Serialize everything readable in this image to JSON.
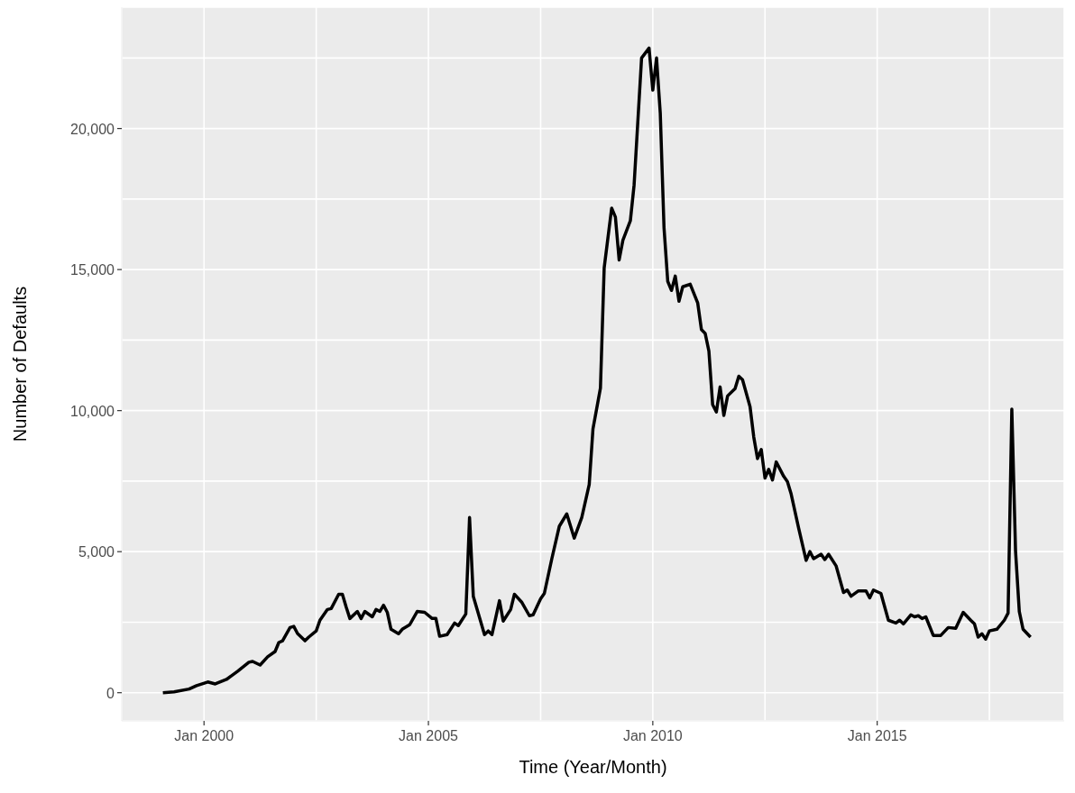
{
  "chart_data": {
    "type": "line",
    "xlabel": "Time (Year/Month)",
    "ylabel": "Number of Defaults",
    "xlim": [
      "1998-03",
      "2019-03"
    ],
    "ylim": [
      -1000,
      24300
    ],
    "xticks": [
      {
        "value": "2000-01",
        "label": "Jan 2000"
      },
      {
        "value": "2002-07",
        "label": null
      },
      {
        "value": "2005-01",
        "label": "Jan 2005"
      },
      {
        "value": "2007-07",
        "label": null
      },
      {
        "value": "2010-01",
        "label": "Jan 2010"
      },
      {
        "value": "2012-07",
        "label": null
      },
      {
        "value": "2015-01",
        "label": "Jan 2015"
      },
      {
        "value": "2017-07",
        "label": null
      }
    ],
    "yticks": [
      {
        "value": 0,
        "label": "0"
      },
      {
        "value": 2500,
        "label": null
      },
      {
        "value": 5000,
        "label": "5,000"
      },
      {
        "value": 7500,
        "label": null
      },
      {
        "value": 10000,
        "label": "10,000"
      },
      {
        "value": 12500,
        "label": null
      },
      {
        "value": 15000,
        "label": "15,000"
      },
      {
        "value": 17500,
        "label": null
      },
      {
        "value": 20000,
        "label": "20,000"
      },
      {
        "value": 22500,
        "label": null
      }
    ],
    "grid": true,
    "marker": "none",
    "line_style": "solid",
    "x": [
      "1999-02",
      "1999-05",
      "1999-09",
      "1999-11",
      "2000-02",
      "2000-04",
      "2000-07",
      "2000-10",
      "2001-01",
      "2001-02",
      "2001-04",
      "2001-06",
      "2001-08",
      "2001-09",
      "2001-10",
      "2001-12",
      "2002-01",
      "2002-02",
      "2002-04",
      "2002-05",
      "2002-07",
      "2002-08",
      "2002-10",
      "2002-11",
      "2003-01",
      "2003-02",
      "2003-03",
      "2003-04",
      "2003-06",
      "2003-07",
      "2003-08",
      "2003-10",
      "2003-11",
      "2003-12",
      "2004-01",
      "2004-02",
      "2004-03",
      "2004-05",
      "2004-06",
      "2004-08",
      "2004-10",
      "2004-12",
      "2005-02",
      "2005-03",
      "2005-04",
      "2005-06",
      "2005-08",
      "2005-09",
      "2005-11",
      "2005-12",
      "2006-01",
      "2006-04",
      "2006-05",
      "2006-06",
      "2006-08",
      "2006-09",
      "2006-11",
      "2006-12",
      "2007-02",
      "2007-04",
      "2007-05",
      "2007-07",
      "2007-08",
      "2007-10",
      "2007-12",
      "2008-02",
      "2008-04",
      "2008-06",
      "2008-08",
      "2008-09",
      "2008-11",
      "2008-12",
      "2009-02",
      "2009-03",
      "2009-04",
      "2009-05",
      "2009-07",
      "2009-08",
      "2009-10",
      "2009-12",
      "2010-01",
      "2010-02",
      "2010-03",
      "2010-04",
      "2010-05",
      "2010-06",
      "2010-07",
      "2010-08",
      "2010-09",
      "2010-11",
      "2011-01",
      "2011-02",
      "2011-03",
      "2011-04",
      "2011-05",
      "2011-06",
      "2011-07",
      "2011-08",
      "2011-09",
      "2011-11",
      "2011-12",
      "2012-01",
      "2012-03",
      "2012-04",
      "2012-05",
      "2012-06",
      "2012-07",
      "2012-08",
      "2012-09",
      "2012-10",
      "2012-12",
      "2013-01",
      "2013-02",
      "2013-04",
      "2013-06",
      "2013-07",
      "2013-08",
      "2013-10",
      "2013-11",
      "2013-12",
      "2014-02",
      "2014-04",
      "2014-05",
      "2014-06",
      "2014-08",
      "2014-10",
      "2014-11",
      "2014-12",
      "2015-02",
      "2015-04",
      "2015-06",
      "2015-07",
      "2015-08",
      "2015-10",
      "2015-11",
      "2015-12",
      "2016-01",
      "2016-02",
      "2016-04",
      "2016-06",
      "2016-08",
      "2016-10",
      "2016-12",
      "2017-02",
      "2017-03",
      "2017-04",
      "2017-05",
      "2017-06",
      "2017-07",
      "2017-09",
      "2017-11",
      "2017-12",
      "2018-01",
      "2018-02",
      "2018-03",
      "2018-04",
      "2018-06"
    ],
    "series": [
      {
        "color": "#000000",
        "values": [
          0,
          30,
          130,
          250,
          380,
          310,
          470,
          760,
          1080,
          1110,
          980,
          1270,
          1460,
          1780,
          1840,
          2310,
          2350,
          2100,
          1840,
          1970,
          2190,
          2570,
          2950,
          2980,
          3490,
          3490,
          3040,
          2630,
          2880,
          2630,
          2880,
          2690,
          2950,
          2880,
          3100,
          2850,
          2250,
          2090,
          2250,
          2410,
          2880,
          2850,
          2630,
          2630,
          2000,
          2060,
          2470,
          2380,
          2790,
          6210,
          3420,
          2060,
          2190,
          2060,
          3260,
          2540,
          2950,
          3490,
          3200,
          2730,
          2760,
          3330,
          3520,
          4750,
          5900,
          6340,
          5480,
          6210,
          7380,
          9350,
          10800,
          15060,
          17180,
          16860,
          15340,
          16040,
          16730,
          18000,
          22500,
          22850,
          21360,
          22500,
          20540,
          16480,
          14580,
          14260,
          14770,
          13880,
          14390,
          14480,
          13820,
          12870,
          12740,
          12110,
          10210,
          9950,
          10840,
          9830,
          10520,
          10780,
          11220,
          11090,
          10140,
          9060,
          8300,
          8620,
          7610,
          7920,
          7540,
          8180,
          7670,
          7480,
          7040,
          5830,
          4690,
          5000,
          4750,
          4910,
          4720,
          4910,
          4500,
          3550,
          3640,
          3420,
          3610,
          3610,
          3360,
          3640,
          3520,
          2570,
          2470,
          2570,
          2440,
          2760,
          2690,
          2730,
          2630,
          2690,
          2030,
          2030,
          2310,
          2280,
          2850,
          2570,
          2440,
          1970,
          2090,
          1900,
          2190,
          2250,
          2570,
          2820,
          10050,
          5010,
          2880,
          2250,
          1970
        ]
      }
    ]
  }
}
